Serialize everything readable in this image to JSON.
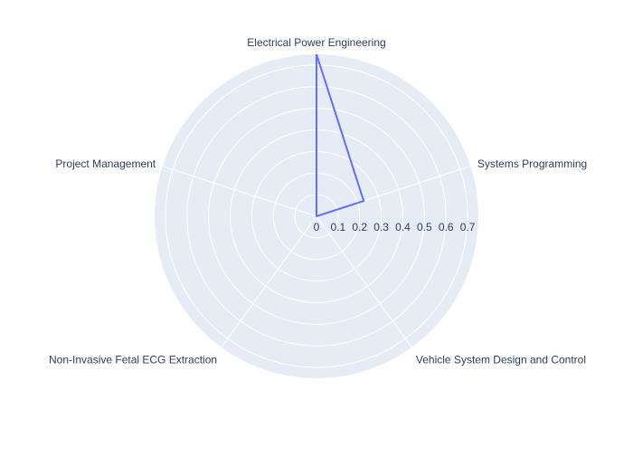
{
  "chart_data": {
    "type": "radar",
    "categories": [
      "Electrical Power Engineering",
      "Systems Programming",
      "Vehicle System Design and Control",
      "Non-Invasive Fetal ECG Extraction",
      "Project Management"
    ],
    "series": [
      {
        "values": [
          0.75,
          0.23,
          0,
          0,
          0
        ],
        "color": "#636efa"
      }
    ],
    "radial_ticks": [
      "0",
      "0.1",
      "0.2",
      "0.3",
      "0.4",
      "0.5",
      "0.6",
      "0.7"
    ],
    "radial_range": [
      0,
      0.75
    ],
    "grid": true,
    "background_color": "#e5ecf6",
    "grid_color": "#ffffff"
  }
}
